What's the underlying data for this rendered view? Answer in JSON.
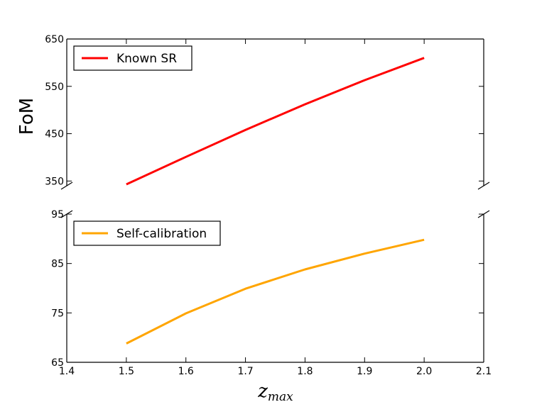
{
  "chart_data": {
    "type": "line",
    "ylabel": "FoM",
    "xlabel": "z",
    "xlabel_subscript": "max",
    "x_ticks": [
      "1.4",
      "1.5",
      "1.6",
      "1.7",
      "1.8",
      "1.9",
      "2.0",
      "2.1"
    ],
    "xlim": [
      1.4,
      2.1
    ],
    "broken_axis": true,
    "grid": false,
    "panels": [
      {
        "position": "top",
        "ylim": [
          340,
          650
        ],
        "y_ticks": [
          "350",
          "450",
          "550",
          "650"
        ],
        "legend_placement": "top-left",
        "series": [
          {
            "name": "Known SR",
            "color": "#ff0000",
            "x": [
              1.5,
              1.6,
              1.7,
              1.8,
              1.9,
              2.0
            ],
            "y": [
              343,
              401,
              458,
              512,
              563,
              610
            ]
          }
        ]
      },
      {
        "position": "bottom",
        "ylim": [
          65,
          95
        ],
        "y_ticks": [
          "65",
          "75",
          "85",
          "95"
        ],
        "legend_placement": "top-left",
        "series": [
          {
            "name": "Self-calibration",
            "color": "#ffa500",
            "x": [
              1.5,
              1.6,
              1.7,
              1.8,
              1.9,
              2.0
            ],
            "y": [
              68.8,
              74.9,
              79.9,
              83.8,
              87.0,
              89.8
            ]
          }
        ]
      }
    ]
  }
}
